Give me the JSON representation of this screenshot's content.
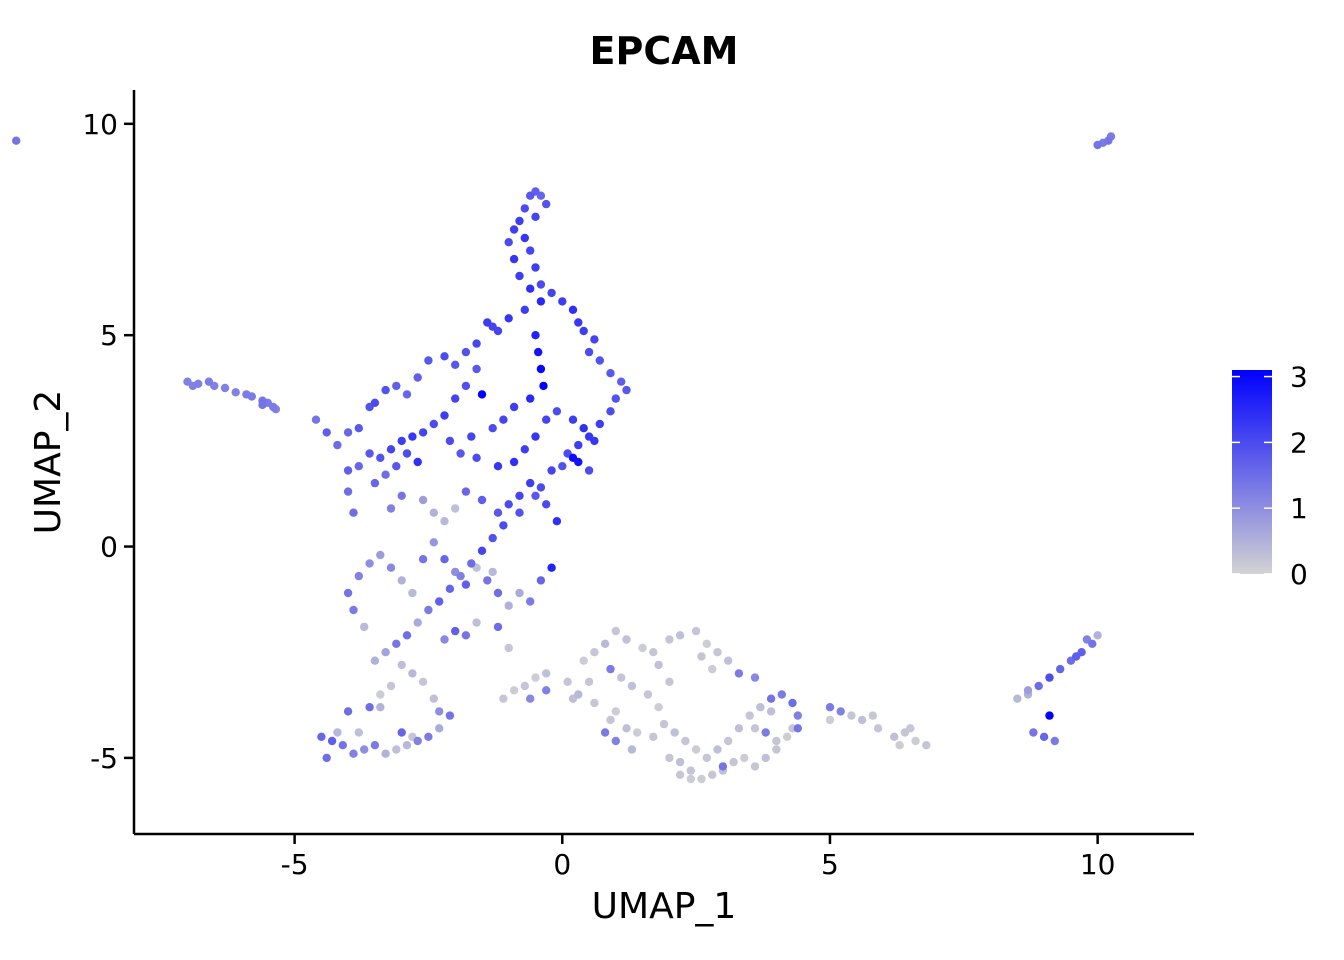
{
  "chart_data": {
    "type": "scatter",
    "title": "EPCAM",
    "xlabel": "UMAP_1",
    "ylabel": "UMAP_2",
    "xlim": [
      -8,
      11.8
    ],
    "ylim": [
      -6.8,
      10.8
    ],
    "xticks": [
      -5,
      0,
      5,
      10
    ],
    "yticks": [
      -5,
      0,
      5,
      10
    ],
    "xtick_labels": [
      "-5",
      "0",
      "5",
      "10"
    ],
    "ytick_labels": [
      "-5",
      "0",
      "5",
      "10"
    ],
    "grid": false,
    "legend": {
      "position": "right",
      "min": 0,
      "max": 3.1,
      "ticks": [
        0,
        1,
        2,
        3
      ],
      "tick_labels": [
        "0",
        "1",
        "2",
        "3"
      ],
      "low_color": "#d3d3d3",
      "high_color": "#0000ff"
    },
    "points": [
      [
        -7.0,
        3.9,
        1.2
      ],
      [
        -6.9,
        3.8,
        1.2
      ],
      [
        -6.8,
        3.85,
        1.2
      ],
      [
        -6.6,
        3.9,
        1.3
      ],
      [
        -6.5,
        3.8,
        1.2
      ],
      [
        -6.3,
        3.75,
        1.2
      ],
      [
        -6.1,
        3.65,
        1.2
      ],
      [
        -5.9,
        3.6,
        1.3
      ],
      [
        -5.8,
        3.55,
        1.3
      ],
      [
        -5.6,
        3.45,
        1.4
      ],
      [
        -5.5,
        3.4,
        1.3
      ],
      [
        -5.4,
        3.3,
        1.3
      ],
      [
        -5.35,
        3.25,
        1.2
      ],
      [
        -5.6,
        3.35,
        1.4
      ],
      [
        -10.2,
        9.6,
        1.4
      ],
      [
        10.0,
        9.5,
        1.4
      ],
      [
        10.1,
        9.55,
        1.3
      ],
      [
        10.2,
        9.6,
        1.4
      ],
      [
        10.25,
        9.7,
        1.3
      ],
      [
        -4.6,
        3.0,
        1.4
      ],
      [
        -4.4,
        2.7,
        1.7
      ],
      [
        -4.2,
        2.4,
        1.5
      ],
      [
        -4.0,
        2.7,
        1.6
      ],
      [
        -3.8,
        2.8,
        1.8
      ],
      [
        -3.6,
        3.3,
        1.9
      ],
      [
        -3.5,
        3.4,
        2.0
      ],
      [
        -3.3,
        3.7,
        1.9
      ],
      [
        -3.1,
        3.8,
        1.7
      ],
      [
        -2.9,
        3.6,
        1.6
      ],
      [
        -2.7,
        4.0,
        1.7
      ],
      [
        -2.5,
        4.4,
        1.8
      ],
      [
        -2.2,
        4.5,
        2.0
      ],
      [
        -2.0,
        4.3,
        1.8
      ],
      [
        -1.8,
        4.6,
        1.9
      ],
      [
        -1.6,
        4.8,
        2.1
      ],
      [
        -1.4,
        5.3,
        2.2
      ],
      [
        -1.3,
        5.2,
        2.1
      ],
      [
        -1.6,
        4.2,
        1.8
      ],
      [
        -1.8,
        3.8,
        1.9
      ],
      [
        -2.0,
        3.5,
        2.1
      ],
      [
        -2.2,
        3.1,
        2.2
      ],
      [
        -2.4,
        2.9,
        2.0
      ],
      [
        -2.6,
        2.7,
        2.1
      ],
      [
        -2.8,
        2.6,
        2.3
      ],
      [
        -3.0,
        2.5,
        2.2
      ],
      [
        -3.2,
        2.3,
        2.1
      ],
      [
        -3.4,
        2.1,
        1.9
      ],
      [
        -3.6,
        2.2,
        1.8
      ],
      [
        -3.8,
        1.9,
        1.6
      ],
      [
        -4.0,
        1.8,
        1.7
      ],
      [
        -3.3,
        1.7,
        1.5
      ],
      [
        -3.5,
        1.5,
        1.6
      ],
      [
        -3.1,
        1.9,
        1.8
      ],
      [
        -2.9,
        2.2,
        2.0
      ],
      [
        -2.7,
        2.0,
        2.4
      ],
      [
        -3.0,
        1.2,
        1.4
      ],
      [
        -3.2,
        0.9,
        1.2
      ],
      [
        -4.0,
        1.3,
        1.5
      ],
      [
        -3.9,
        0.8,
        1.5
      ],
      [
        -2.6,
        1.1,
        0.8
      ],
      [
        -2.4,
        0.8,
        0.5
      ],
      [
        -2.2,
        0.6,
        0.4
      ],
      [
        -2.0,
        0.9,
        0.3
      ],
      [
        -1.8,
        1.3,
        1.6
      ],
      [
        -1.5,
        1.1,
        1.7
      ],
      [
        -1.2,
        0.8,
        1.8
      ],
      [
        -1.0,
        1.0,
        2.0
      ],
      [
        -0.8,
        1.2,
        2.1
      ],
      [
        -0.6,
        1.5,
        2.2
      ],
      [
        -0.4,
        1.4,
        2.0
      ],
      [
        -0.2,
        1.8,
        2.1
      ],
      [
        0.0,
        1.9,
        1.9
      ],
      [
        0.1,
        2.2,
        2.0
      ],
      [
        0.3,
        2.4,
        2.2
      ],
      [
        0.5,
        2.6,
        2.3
      ],
      [
        0.7,
        2.9,
        2.2
      ],
      [
        0.9,
        3.2,
        2.0
      ],
      [
        1.0,
        3.5,
        1.9
      ],
      [
        1.2,
        3.7,
        1.8
      ],
      [
        1.1,
        3.9,
        1.7
      ],
      [
        0.9,
        4.1,
        1.8
      ],
      [
        0.7,
        4.4,
        1.9
      ],
      [
        0.5,
        4.6,
        2.0
      ],
      [
        0.6,
        4.9,
        2.1
      ],
      [
        0.4,
        5.1,
        2.2
      ],
      [
        0.3,
        5.3,
        2.3
      ],
      [
        0.2,
        5.6,
        2.4
      ],
      [
        0.0,
        5.8,
        2.2
      ],
      [
        -0.2,
        6.0,
        2.1
      ],
      [
        -0.4,
        6.2,
        2.0
      ],
      [
        -0.5,
        6.6,
        2.2
      ],
      [
        -0.6,
        7.0,
        2.1
      ],
      [
        -0.7,
        7.3,
        2.3
      ],
      [
        -0.8,
        7.7,
        2.2
      ],
      [
        -0.7,
        8.0,
        2.0
      ],
      [
        -0.6,
        8.3,
        1.8
      ],
      [
        -0.5,
        8.4,
        1.7
      ],
      [
        -0.4,
        8.3,
        1.6
      ],
      [
        -0.3,
        8.1,
        1.9
      ],
      [
        -0.5,
        7.8,
        2.1
      ],
      [
        -0.9,
        7.5,
        2.2
      ],
      [
        -1.0,
        7.2,
        2.0
      ],
      [
        -0.9,
        6.8,
        2.3
      ],
      [
        -0.8,
        6.4,
        2.2
      ],
      [
        -0.6,
        6.1,
        2.4
      ],
      [
        -0.4,
        5.8,
        2.5
      ],
      [
        -0.7,
        5.6,
        2.2
      ],
      [
        -1.0,
        5.4,
        2.3
      ],
      [
        -1.2,
        5.1,
        2.1
      ],
      [
        -0.5,
        5.0,
        2.6
      ],
      [
        -0.45,
        4.6,
        2.8
      ],
      [
        -0.4,
        4.2,
        3.0
      ],
      [
        -0.35,
        3.8,
        3.1
      ],
      [
        -1.5,
        3.6,
        3.1
      ],
      [
        -0.6,
        3.5,
        2.5
      ],
      [
        -0.9,
        3.3,
        2.2
      ],
      [
        -1.1,
        3.0,
        2.1
      ],
      [
        -1.3,
        2.8,
        2.0
      ],
      [
        -1.7,
        2.6,
        2.1
      ],
      [
        -2.1,
        2.5,
        2.0
      ],
      [
        -1.9,
        2.2,
        1.8
      ],
      [
        -1.6,
        2.1,
        2.0
      ],
      [
        -1.2,
        1.9,
        2.3
      ],
      [
        -0.9,
        2.0,
        2.4
      ],
      [
        -0.7,
        2.3,
        2.2
      ],
      [
        -0.5,
        2.6,
        2.3
      ],
      [
        -0.3,
        3.0,
        2.1
      ],
      [
        -0.1,
        3.2,
        2.0
      ],
      [
        0.2,
        3.0,
        2.2
      ],
      [
        0.4,
        2.8,
        2.4
      ],
      [
        0.6,
        2.5,
        2.3
      ],
      [
        0.3,
        2.0,
        2.8
      ],
      [
        0.2,
        2.1,
        2.9
      ],
      [
        0.5,
        1.8,
        2.0
      ],
      [
        -0.5,
        1.2,
        1.8
      ],
      [
        -0.3,
        1.0,
        2.0
      ],
      [
        -0.1,
        0.6,
        2.4
      ],
      [
        -0.8,
        0.8,
        1.9
      ],
      [
        -1.1,
        0.5,
        2.0
      ],
      [
        -1.3,
        0.2,
        1.9
      ],
      [
        -1.5,
        -0.1,
        2.1
      ],
      [
        -1.7,
        -0.4,
        1.5
      ],
      [
        -1.9,
        -0.7,
        1.2
      ],
      [
        -2.1,
        -1.0,
        1.6
      ],
      [
        -2.3,
        -1.3,
        1.7
      ],
      [
        -2.5,
        -1.5,
        1.3
      ],
      [
        -2.7,
        -1.8,
        0.6
      ],
      [
        -2.9,
        -2.1,
        1.5
      ],
      [
        -3.1,
        -2.3,
        1.4
      ],
      [
        -3.3,
        -2.5,
        0.7
      ],
      [
        -3.5,
        -2.7,
        0.5
      ],
      [
        -3.7,
        -1.9,
        0.4
      ],
      [
        -3.9,
        -1.5,
        1.3
      ],
      [
        -4.0,
        -1.1,
        1.4
      ],
      [
        -3.8,
        -0.7,
        1.2
      ],
      [
        -3.6,
        -0.4,
        1.0
      ],
      [
        -3.4,
        -0.2,
        0.8
      ],
      [
        -3.2,
        -0.5,
        1.1
      ],
      [
        -3.0,
        -0.8,
        0.5
      ],
      [
        -2.8,
        -1.1,
        0.4
      ],
      [
        -2.6,
        -0.3,
        1.4
      ],
      [
        -2.4,
        0.1,
        0.9
      ],
      [
        -2.2,
        -0.3,
        1.6
      ],
      [
        -2.0,
        -0.6,
        1.0
      ],
      [
        -1.8,
        -0.9,
        1.7
      ],
      [
        -1.6,
        -0.5,
        0.3
      ],
      [
        -1.4,
        -0.8,
        1.4
      ],
      [
        -1.2,
        -1.1,
        1.5
      ],
      [
        -1.0,
        -1.4,
        0.5
      ],
      [
        -0.8,
        -1.1,
        0.6
      ],
      [
        -0.6,
        -1.3,
        1.3
      ],
      [
        -0.4,
        -0.8,
        1.6
      ],
      [
        -0.2,
        -0.5,
        2.6
      ],
      [
        -1.3,
        -0.6,
        0.4
      ],
      [
        -2.2,
        -2.2,
        1.1
      ],
      [
        -2.0,
        -2.0,
        1.7
      ],
      [
        -1.8,
        -2.1,
        1.4
      ],
      [
        -1.6,
        -1.8,
        0.3
      ],
      [
        -1.2,
        -1.9,
        1.5
      ],
      [
        -1.0,
        -2.4,
        0.2
      ],
      [
        -3.0,
        -2.8,
        0.3
      ],
      [
        -2.8,
        -3.0,
        0.4
      ],
      [
        -3.2,
        -3.3,
        0.2
      ],
      [
        -3.4,
        -3.5,
        0.1
      ],
      [
        -2.6,
        -3.2,
        0.2
      ],
      [
        -2.4,
        -3.6,
        0.3
      ],
      [
        -4.5,
        -4.5,
        1.6
      ],
      [
        -4.3,
        -4.6,
        1.7
      ],
      [
        -4.1,
        -4.7,
        1.4
      ],
      [
        -3.9,
        -4.9,
        1.2
      ],
      [
        -3.7,
        -4.8,
        1.0
      ],
      [
        -3.5,
        -4.7,
        1.3
      ],
      [
        -3.3,
        -4.9,
        0.5
      ],
      [
        -3.1,
        -4.8,
        0.3
      ],
      [
        -2.9,
        -4.7,
        0.4
      ],
      [
        -2.7,
        -4.6,
        1.2
      ],
      [
        -2.5,
        -4.5,
        1.3
      ],
      [
        -2.3,
        -4.3,
        0.6
      ],
      [
        -2.1,
        -4.0,
        1.4
      ],
      [
        -2.3,
        -3.9,
        1.0
      ],
      [
        -4.2,
        -4.4,
        0.4
      ],
      [
        -3.8,
        -4.4,
        0.3
      ],
      [
        -3.6,
        -3.8,
        1.5
      ],
      [
        -3.4,
        -3.8,
        0.5
      ],
      [
        -3.0,
        -4.4,
        1.6
      ],
      [
        -2.8,
        -4.5,
        0.2
      ],
      [
        -4.0,
        -3.9,
        1.5
      ],
      [
        -4.4,
        -5.0,
        1.5
      ],
      [
        1.0,
        -2.0,
        0.2
      ],
      [
        1.2,
        -2.2,
        0.3
      ],
      [
        1.5,
        -2.4,
        0.1
      ],
      [
        1.7,
        -2.5,
        0.2
      ],
      [
        0.8,
        -2.3,
        0.4
      ],
      [
        0.6,
        -2.5,
        0.2
      ],
      [
        0.4,
        -2.7,
        0.1
      ],
      [
        0.9,
        -2.9,
        1.3
      ],
      [
        1.1,
        -3.1,
        0.2
      ],
      [
        1.3,
        -3.3,
        0.3
      ],
      [
        1.6,
        -3.5,
        0.2
      ],
      [
        1.8,
        -3.8,
        0.1
      ],
      [
        0.5,
        -3.2,
        0.2
      ],
      [
        0.3,
        -3.5,
        0.4
      ],
      [
        0.1,
        -3.2,
        0.2
      ],
      [
        -0.3,
        -3.0,
        0.3
      ],
      [
        -0.5,
        -3.1,
        0.1
      ],
      [
        -0.7,
        -3.3,
        0.2
      ],
      [
        -0.9,
        -3.4,
        0.1
      ],
      [
        -1.1,
        -3.6,
        0.2
      ],
      [
        -0.6,
        -3.6,
        1.1
      ],
      [
        -0.3,
        -3.4,
        1.2
      ],
      [
        0.2,
        -3.6,
        0.3
      ],
      [
        0.6,
        -3.7,
        0.2
      ],
      [
        1.0,
        -3.9,
        0.1
      ],
      [
        0.9,
        -4.1,
        0.2
      ],
      [
        1.2,
        -4.3,
        0.3
      ],
      [
        1.4,
        -4.4,
        0.1
      ],
      [
        1.7,
        -4.5,
        0.2
      ],
      [
        1.3,
        -4.8,
        0.4
      ],
      [
        1.0,
        -4.6,
        1.2
      ],
      [
        0.8,
        -4.4,
        1.3
      ],
      [
        2.0,
        -5.0,
        0.2
      ],
      [
        2.2,
        -5.1,
        0.3
      ],
      [
        2.4,
        -5.3,
        0.2
      ],
      [
        2.6,
        -5.5,
        0.1
      ],
      [
        2.8,
        -5.4,
        0.2
      ],
      [
        3.0,
        -5.3,
        0.3
      ],
      [
        3.2,
        -5.1,
        0.2
      ],
      [
        3.4,
        -5.0,
        0.1
      ],
      [
        3.6,
        -5.2,
        0.2
      ],
      [
        3.8,
        -5.0,
        0.3
      ],
      [
        4.0,
        -4.8,
        0.2
      ],
      [
        4.2,
        -4.5,
        0.1
      ],
      [
        4.3,
        -4.3,
        0.2
      ],
      [
        4.4,
        -4.0,
        1.2
      ],
      [
        4.3,
        -3.7,
        1.5
      ],
      [
        4.1,
        -3.5,
        1.3
      ],
      [
        3.9,
        -3.6,
        1.4
      ],
      [
        3.7,
        -3.8,
        0.3
      ],
      [
        3.5,
        -4.0,
        0.2
      ],
      [
        3.3,
        -4.3,
        0.3
      ],
      [
        3.1,
        -4.6,
        0.2
      ],
      [
        2.9,
        -4.8,
        0.3
      ],
      [
        2.7,
        -5.0,
        0.2
      ],
      [
        2.5,
        -4.8,
        0.1
      ],
      [
        2.3,
        -4.6,
        0.2
      ],
      [
        2.1,
        -4.4,
        0.3
      ],
      [
        1.9,
        -4.2,
        0.2
      ],
      [
        2.2,
        -5.4,
        0.2
      ],
      [
        2.4,
        -5.5,
        0.1
      ],
      [
        3.0,
        -5.2,
        1.4
      ],
      [
        3.6,
        -4.3,
        0.2
      ],
      [
        3.8,
        -4.4,
        1.3
      ],
      [
        4.0,
        -4.6,
        0.2
      ],
      [
        3.9,
        -3.9,
        0.3
      ],
      [
        4.4,
        -4.3,
        1.4
      ],
      [
        2.0,
        -2.2,
        0.2
      ],
      [
        2.2,
        -2.1,
        0.3
      ],
      [
        2.5,
        -2.0,
        0.2
      ],
      [
        2.7,
        -2.3,
        0.1
      ],
      [
        2.9,
        -2.5,
        0.2
      ],
      [
        3.1,
        -2.7,
        0.3
      ],
      [
        2.6,
        -2.6,
        0.2
      ],
      [
        2.8,
        -2.9,
        0.1
      ],
      [
        3.3,
        -3.0,
        1.3
      ],
      [
        3.6,
        -3.1,
        1.1
      ],
      [
        2.0,
        -3.2,
        0.2
      ],
      [
        1.8,
        -2.8,
        0.3
      ],
      [
        5.0,
        -3.8,
        1.3
      ],
      [
        5.2,
        -3.9,
        1.2
      ],
      [
        5.4,
        -4.0,
        0.2
      ],
      [
        5.6,
        -4.1,
        0.3
      ],
      [
        5.8,
        -4.0,
        0.2
      ],
      [
        5.0,
        -4.1,
        0.1
      ],
      [
        5.9,
        -4.3,
        0.2
      ],
      [
        6.2,
        -4.5,
        0.3
      ],
      [
        6.4,
        -4.4,
        0.2
      ],
      [
        6.6,
        -4.6,
        0.1
      ],
      [
        6.8,
        -4.7,
        0.2
      ],
      [
        6.3,
        -4.7,
        0.1
      ],
      [
        6.5,
        -4.3,
        0.2
      ],
      [
        8.5,
        -3.6,
        0.4
      ],
      [
        8.7,
        -3.5,
        0.5
      ],
      [
        8.9,
        -3.3,
        1.5
      ],
      [
        9.1,
        -3.1,
        2.0
      ],
      [
        9.3,
        -2.9,
        1.6
      ],
      [
        9.5,
        -2.7,
        1.5
      ],
      [
        9.7,
        -2.5,
        1.7
      ],
      [
        9.9,
        -2.3,
        1.4
      ],
      [
        10.0,
        -2.1,
        0.5
      ],
      [
        9.8,
        -2.2,
        1.2
      ],
      [
        9.6,
        -2.6,
        1.7
      ],
      [
        8.8,
        -4.4,
        1.4
      ],
      [
        9.0,
        -4.5,
        1.6
      ],
      [
        9.2,
        -4.6,
        1.3
      ],
      [
        9.1,
        -4.0,
        3.1
      ],
      [
        8.7,
        -3.4,
        0.8
      ]
    ]
  }
}
